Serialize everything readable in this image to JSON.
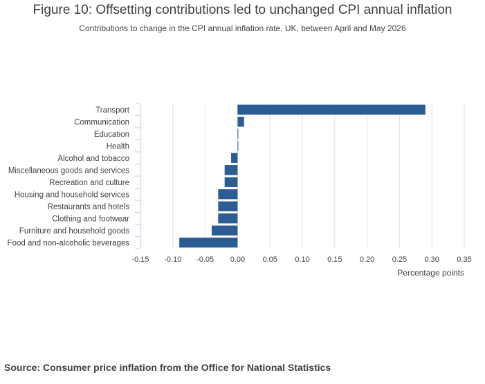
{
  "header": {
    "title": "Figure 10: Offsetting contributions led to unchanged CPI annual inflation",
    "subtitle": "Contributions to change in the CPI annual inflation rate, UK, between April and May 2026"
  },
  "source": {
    "label": "Source:",
    "text": "Consumer price inflation from the Office for National Statistics"
  },
  "colors": {
    "bar": "#2a5d94",
    "grid": "#e2e2e2",
    "axis": "#c8c8f0",
    "text": "#414042"
  },
  "chart_data": {
    "type": "bar",
    "orientation": "horizontal",
    "title": "Figure 10: Offsetting contributions led to unchanged CPI annual inflation",
    "subtitle": "Contributions to change in the CPI annual inflation rate, UK, between April and May 2026",
    "xlabel": "Percentage points",
    "ylabel": "",
    "xlim": [
      -0.15,
      0.35
    ],
    "xticks": [
      -0.15,
      -0.1,
      -0.05,
      0.0,
      0.05,
      0.1,
      0.15,
      0.2,
      0.25,
      0.3,
      0.35
    ],
    "xtick_labels": [
      "-0.15",
      "-0.10",
      "-0.05",
      "0.00",
      "0.05",
      "0.10",
      "0.15",
      "0.20",
      "0.25",
      "0.30",
      "0.35"
    ],
    "grid": true,
    "categories": [
      "Transport",
      "Communication",
      "Education",
      "Health",
      "Alcohol and tobacco",
      "Miscellaneous goods and services",
      "Recreation and culture",
      "Housing and household services",
      "Restaurants and hotels",
      "Clothing and footwear",
      "Furniture and household goods",
      "Food and non-alcoholic beverages"
    ],
    "values": [
      0.29,
      0.01,
      0.0,
      0.0,
      -0.01,
      -0.02,
      -0.02,
      -0.03,
      -0.03,
      -0.03,
      -0.04,
      -0.09
    ]
  }
}
